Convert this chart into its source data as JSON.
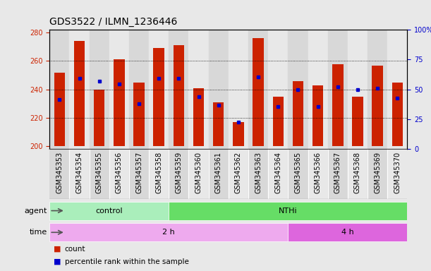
{
  "title": "GDS3522 / ILMN_1236446",
  "samples": [
    "GSM345353",
    "GSM345354",
    "GSM345355",
    "GSM345356",
    "GSM345357",
    "GSM345358",
    "GSM345359",
    "GSM345360",
    "GSM345361",
    "GSM345362",
    "GSM345363",
    "GSM345364",
    "GSM345365",
    "GSM345366",
    "GSM345367",
    "GSM345368",
    "GSM345369",
    "GSM345370"
  ],
  "bar_tops": [
    252,
    274,
    240,
    261,
    245,
    269,
    271,
    241,
    231,
    217,
    276,
    235,
    246,
    243,
    258,
    235,
    257,
    245
  ],
  "bar_bottom": 200,
  "percentile_values": [
    233,
    248,
    246,
    244,
    230,
    248,
    248,
    235,
    229,
    217,
    249,
    228,
    240,
    228,
    242,
    240,
    241,
    234
  ],
  "bar_color": "#cc2200",
  "dot_color": "#0000cc",
  "ylim_left": [
    198,
    282
  ],
  "ylim_right": [
    0,
    100
  ],
  "yticks_left": [
    200,
    220,
    240,
    260,
    280
  ],
  "yticks_right": [
    0,
    25,
    50,
    75,
    100
  ],
  "ytick_right_labels": [
    "0",
    "25",
    "50",
    "75",
    "100%"
  ],
  "gridlines": [
    220,
    240,
    260
  ],
  "agent_groups": [
    {
      "label": "control",
      "start": 0,
      "end": 6,
      "color": "#aaeebb"
    },
    {
      "label": "NTHi",
      "start": 6,
      "end": 18,
      "color": "#66dd66"
    }
  ],
  "time_groups": [
    {
      "label": "2 h",
      "start": 0,
      "end": 12,
      "color": "#eeaaee"
    },
    {
      "label": "4 h",
      "start": 12,
      "end": 18,
      "color": "#dd66dd"
    }
  ],
  "agent_label": "agent",
  "time_label": "time",
  "legend_count_label": "count",
  "legend_percentile_label": "percentile rank within the sample",
  "bar_width": 0.55,
  "title_fontsize": 10,
  "tick_fontsize": 7,
  "label_fontsize": 8,
  "row_fontsize": 8,
  "background_color": "#e8e8e8",
  "plot_bg_color": "#ffffff",
  "xtick_bg_color": "#d8d8d8"
}
